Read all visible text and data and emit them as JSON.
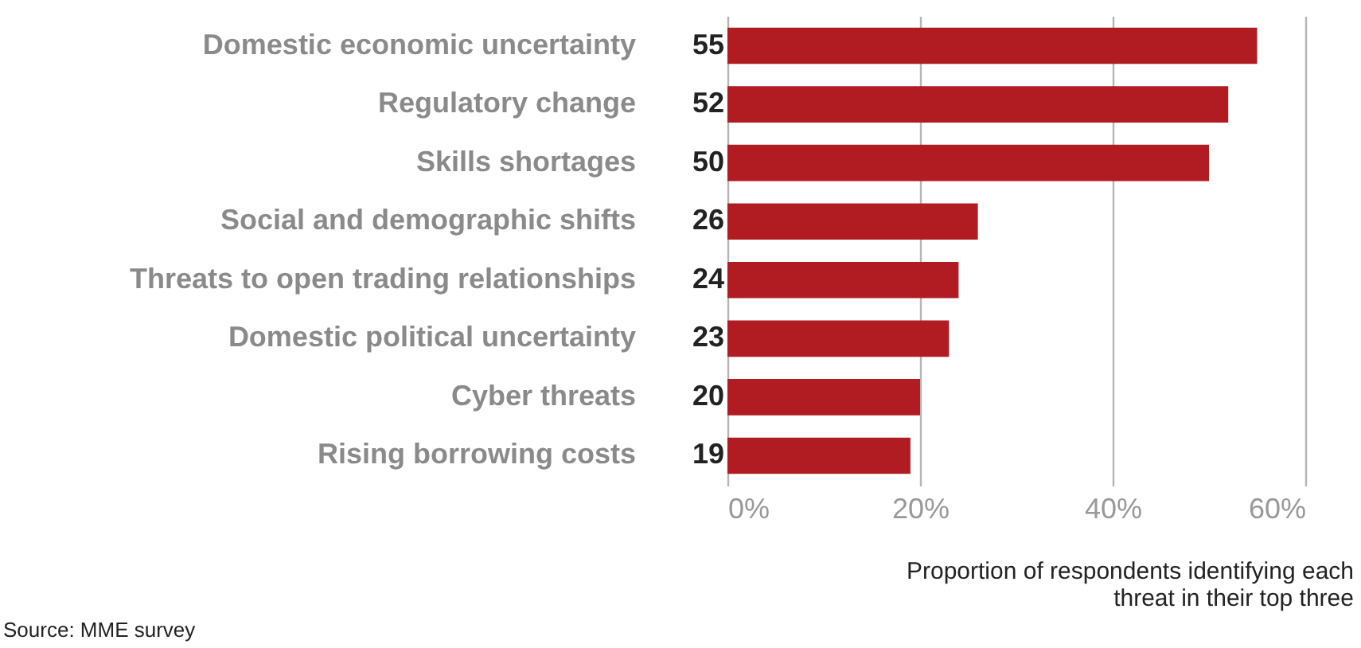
{
  "chart_data": {
    "type": "bar",
    "orientation": "horizontal",
    "categories": [
      "Domestic economic uncertainty",
      "Regulatory change",
      "Skills shortages",
      "Social and demographic shifts",
      "Threats to open trading relationships",
      "Domestic political uncertainty",
      "Cyber threats",
      "Rising borrowing costs"
    ],
    "values": [
      55,
      52,
      50,
      26,
      24,
      23,
      20,
      19
    ],
    "color": "#b01c22",
    "xlim": [
      0,
      60
    ],
    "xticks": [
      {
        "value": 0,
        "label": "0%"
      },
      {
        "value": 20,
        "label": "20%"
      },
      {
        "value": 40,
        "label": "40%"
      },
      {
        "value": 60,
        "label": "60%"
      }
    ],
    "grid": "x",
    "data_labels": true,
    "xlabel": "Proportion of respondents identifying each threat in their top three",
    "annotations": [
      "Source: MME survey"
    ]
  }
}
